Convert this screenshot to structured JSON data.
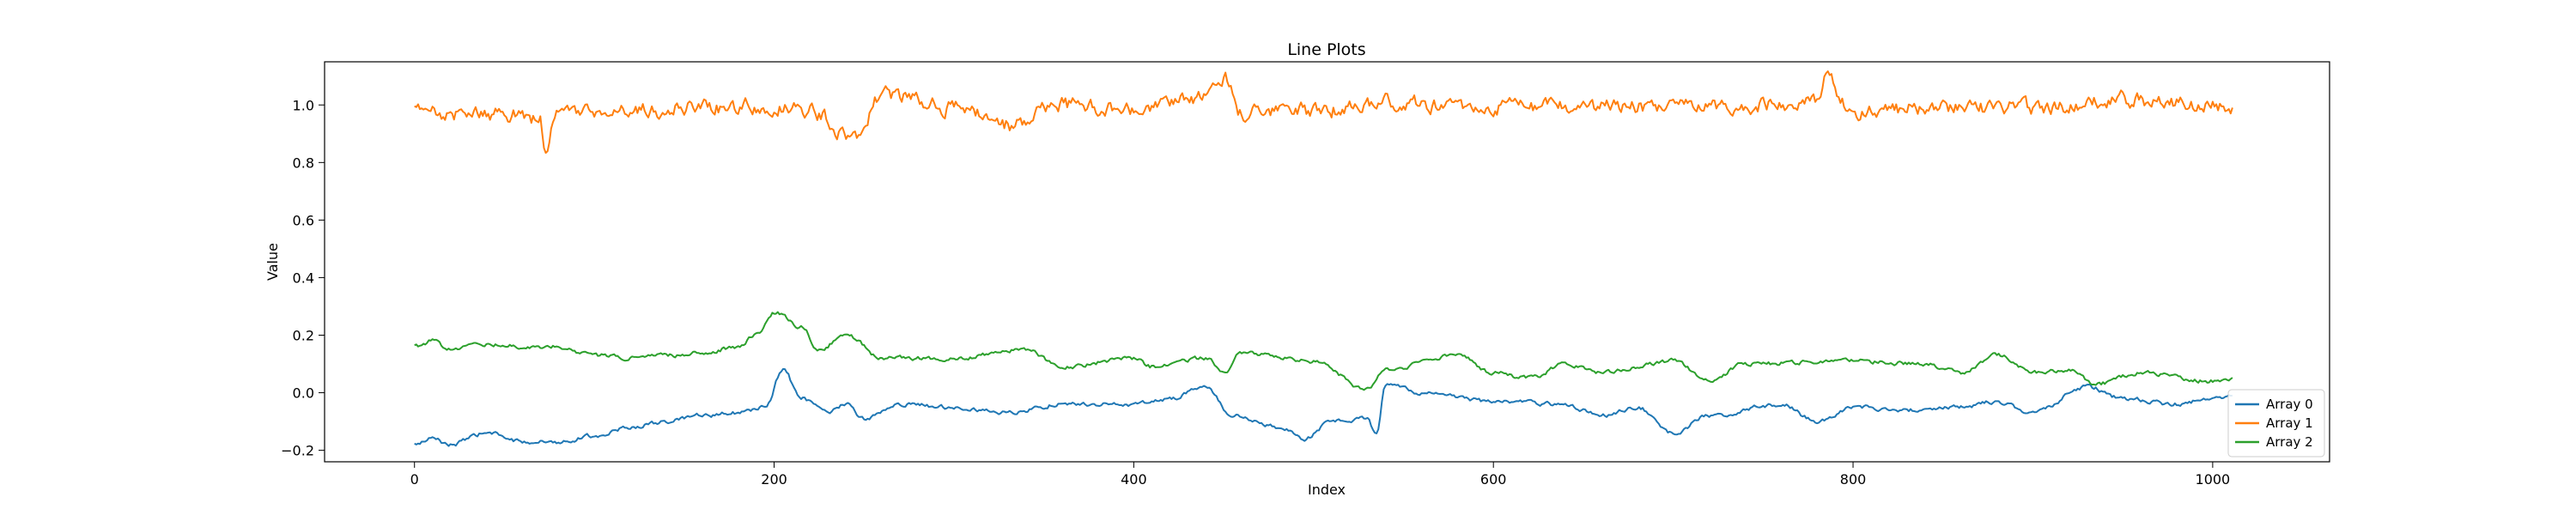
{
  "chart_data": {
    "type": "line",
    "title": "Line Plots",
    "xlabel": "Index",
    "ylabel": "Value",
    "xlim": [
      -50,
      1065
    ],
    "ylim": [
      -0.24,
      1.15
    ],
    "xticks": [
      0,
      200,
      400,
      600,
      800,
      1000
    ],
    "yticks": [
      -0.2,
      0.0,
      0.2,
      0.4,
      0.6,
      0.8,
      1.0
    ],
    "grid": false,
    "legend": "lower-right",
    "n_points": 1012,
    "series": [
      {
        "name": "Array 0",
        "color": "#1f77b4",
        "keypoints": [
          [
            0,
            -0.18
          ],
          [
            10,
            -0.16
          ],
          [
            20,
            -0.18
          ],
          [
            40,
            -0.14
          ],
          [
            60,
            -0.17
          ],
          [
            80,
            -0.17
          ],
          [
            100,
            -0.15
          ],
          [
            120,
            -0.12
          ],
          [
            140,
            -0.1
          ],
          [
            160,
            -0.08
          ],
          [
            180,
            -0.07
          ],
          [
            195,
            -0.05
          ],
          [
            205,
            0.08
          ],
          [
            215,
            -0.02
          ],
          [
            230,
            -0.07
          ],
          [
            240,
            -0.04
          ],
          [
            250,
            -0.09
          ],
          [
            270,
            -0.04
          ],
          [
            300,
            -0.05
          ],
          [
            330,
            -0.07
          ],
          [
            360,
            -0.04
          ],
          [
            400,
            -0.04
          ],
          [
            420,
            -0.02
          ],
          [
            440,
            0.02
          ],
          [
            455,
            -0.08
          ],
          [
            480,
            -0.12
          ],
          [
            495,
            -0.16
          ],
          [
            510,
            -0.1
          ],
          [
            530,
            -0.09
          ],
          [
            535,
            -0.15
          ],
          [
            540,
            0.03
          ],
          [
            560,
            0.0
          ],
          [
            600,
            -0.03
          ],
          [
            640,
            -0.04
          ],
          [
            660,
            -0.08
          ],
          [
            680,
            -0.05
          ],
          [
            700,
            -0.14
          ],
          [
            720,
            -0.08
          ],
          [
            760,
            -0.04
          ],
          [
            780,
            -0.1
          ],
          [
            800,
            -0.05
          ],
          [
            830,
            -0.06
          ],
          [
            860,
            -0.05
          ],
          [
            880,
            -0.03
          ],
          [
            900,
            -0.07
          ],
          [
            930,
            0.02
          ],
          [
            950,
            -0.02
          ],
          [
            980,
            -0.04
          ],
          [
            1000,
            -0.02
          ],
          [
            1011,
            -0.01
          ]
        ],
        "noise": 0.006
      },
      {
        "name": "Array 1",
        "color": "#ff7f0e",
        "keypoints": [
          [
            0,
            0.98
          ],
          [
            30,
            0.97
          ],
          [
            60,
            0.97
          ],
          [
            70,
            0.94
          ],
          [
            72,
            0.85
          ],
          [
            80,
            0.97
          ],
          [
            120,
            0.98
          ],
          [
            160,
            0.99
          ],
          [
            200,
            1.0
          ],
          [
            220,
            0.98
          ],
          [
            245,
            0.88
          ],
          [
            260,
            1.04
          ],
          [
            300,
            0.99
          ],
          [
            330,
            0.93
          ],
          [
            360,
            1.0
          ],
          [
            400,
            0.98
          ],
          [
            440,
            1.02
          ],
          [
            450,
            1.1
          ],
          [
            460,
            0.97
          ],
          [
            500,
            0.98
          ],
          [
            540,
            1.01
          ],
          [
            600,
            0.99
          ],
          [
            700,
            0.99
          ],
          [
            780,
            1.01
          ],
          [
            785,
            1.09
          ],
          [
            800,
            0.97
          ],
          [
            840,
            0.99
          ],
          [
            900,
            0.99
          ],
          [
            950,
            1.02
          ],
          [
            1000,
            1.0
          ],
          [
            1011,
            1.0
          ]
        ],
        "noise": 0.022
      },
      {
        "name": "Array 2",
        "color": "#2ca02c",
        "keypoints": [
          [
            0,
            0.16
          ],
          [
            10,
            0.18
          ],
          [
            20,
            0.15
          ],
          [
            40,
            0.17
          ],
          [
            60,
            0.16
          ],
          [
            80,
            0.16
          ],
          [
            100,
            0.13
          ],
          [
            120,
            0.12
          ],
          [
            140,
            0.13
          ],
          [
            160,
            0.14
          ],
          [
            180,
            0.16
          ],
          [
            190,
            0.2
          ],
          [
            200,
            0.28
          ],
          [
            215,
            0.23
          ],
          [
            225,
            0.15
          ],
          [
            240,
            0.2
          ],
          [
            260,
            0.12
          ],
          [
            300,
            0.12
          ],
          [
            340,
            0.15
          ],
          [
            360,
            0.09
          ],
          [
            400,
            0.12
          ],
          [
            410,
            0.09
          ],
          [
            440,
            0.12
          ],
          [
            450,
            0.07
          ],
          [
            460,
            0.14
          ],
          [
            500,
            0.11
          ],
          [
            530,
            0.01
          ],
          [
            540,
            0.08
          ],
          [
            580,
            0.13
          ],
          [
            600,
            0.07
          ],
          [
            620,
            0.05
          ],
          [
            640,
            0.1
          ],
          [
            660,
            0.07
          ],
          [
            700,
            0.11
          ],
          [
            720,
            0.04
          ],
          [
            740,
            0.1
          ],
          [
            800,
            0.11
          ],
          [
            840,
            0.1
          ],
          [
            860,
            0.07
          ],
          [
            880,
            0.13
          ],
          [
            900,
            0.07
          ],
          [
            920,
            0.08
          ],
          [
            935,
            0.03
          ],
          [
            960,
            0.07
          ],
          [
            1000,
            0.04
          ],
          [
            1011,
            0.05
          ]
        ],
        "noise": 0.006
      }
    ]
  }
}
